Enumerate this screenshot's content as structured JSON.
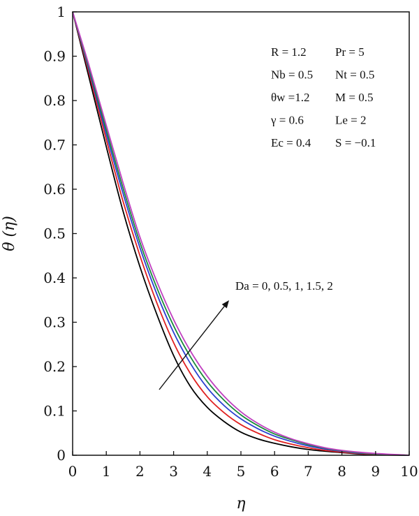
{
  "chart_data": {
    "type": "line",
    "xlabel": "η",
    "ylabel": "θ (η)",
    "xlim": [
      0,
      10
    ],
    "ylim": [
      0,
      1
    ],
    "xticks": [
      "0",
      "1",
      "2",
      "3",
      "4",
      "5",
      "6",
      "7",
      "8",
      "9",
      "10"
    ],
    "yticks": [
      "0",
      "0.1",
      "0.2",
      "0.3",
      "0.4",
      "0.5",
      "0.6",
      "0.7",
      "0.8",
      "0.9",
      "1"
    ],
    "grid": false,
    "x": [
      0,
      0.5,
      1,
      1.5,
      2,
      2.5,
      3,
      3.5,
      4,
      4.5,
      5,
      5.5,
      6,
      6.5,
      7,
      7.5,
      8,
      8.5,
      9,
      9.5,
      10
    ],
    "series": [
      {
        "color": "#000000",
        "values": [
          1.0,
          0.848,
          0.696,
          0.55,
          0.425,
          0.318,
          0.225,
          0.155,
          0.108,
          0.076,
          0.052,
          0.037,
          0.027,
          0.019,
          0.013,
          0.009,
          0.006,
          0.003,
          0.001,
          0.0005,
          0.0
        ]
      },
      {
        "color": "#e02020",
        "values": [
          1.0,
          0.858,
          0.712,
          0.572,
          0.45,
          0.344,
          0.254,
          0.184,
          0.132,
          0.096,
          0.069,
          0.05,
          0.035,
          0.025,
          0.017,
          0.011,
          0.007,
          0.004,
          0.002,
          0.001,
          0.0
        ]
      },
      {
        "color": "#2a3fd0",
        "values": [
          1.0,
          0.865,
          0.724,
          0.59,
          0.468,
          0.364,
          0.277,
          0.207,
          0.152,
          0.112,
          0.082,
          0.06,
          0.043,
          0.031,
          0.021,
          0.014,
          0.009,
          0.005,
          0.003,
          0.001,
          0.0
        ]
      },
      {
        "color": "#1a8a3a",
        "values": [
          1.0,
          0.87,
          0.734,
          0.602,
          0.48,
          0.378,
          0.292,
          0.222,
          0.166,
          0.124,
          0.091,
          0.067,
          0.048,
          0.035,
          0.024,
          0.016,
          0.01,
          0.006,
          0.003,
          0.001,
          0.0
        ]
      },
      {
        "color": "#c040c0",
        "values": [
          1.0,
          0.876,
          0.744,
          0.614,
          0.492,
          0.392,
          0.306,
          0.235,
          0.178,
          0.133,
          0.098,
          0.072,
          0.052,
          0.037,
          0.026,
          0.017,
          0.011,
          0.007,
          0.004,
          0.002,
          0.0
        ]
      }
    ],
    "parameters": [
      [
        "R = 1.2",
        "Pr = 5"
      ],
      [
        "Nb = 0.5",
        "Nt = 0.5"
      ],
      [
        "θw =1.2",
        "M = 0.5"
      ],
      [
        "γ = 0.6",
        "Le = 2"
      ],
      [
        "Ec = 0.4",
        "S = −0.1"
      ]
    ],
    "annotation": "Da = 0, 0.5, 1, 1.5, 2"
  }
}
